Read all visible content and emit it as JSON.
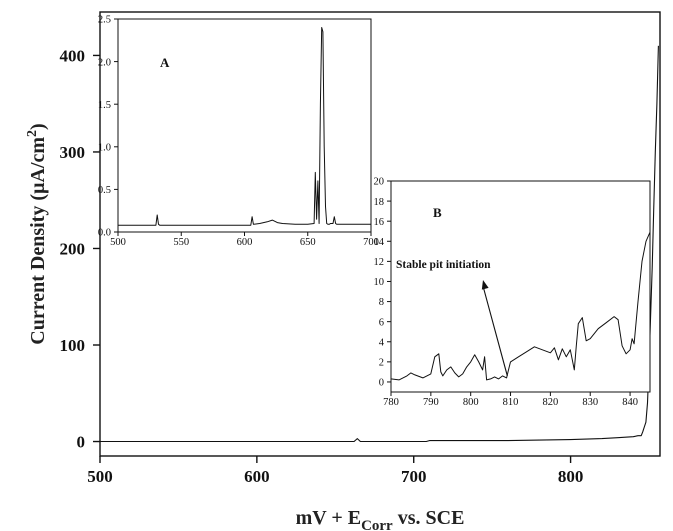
{
  "chart_data": [
    {
      "id": "main",
      "type": "line",
      "xlabel": "mV + E",
      "xlabel_sub": "Corr",
      "xlabel_rest": " vs. SCE",
      "ylabel": "Current Density (µA/cm",
      "ylabel_sup": "2",
      "ylabel_end": ")",
      "xlim": [
        500,
        857
      ],
      "ylim": [
        -15,
        445
      ],
      "xticks": [
        500,
        600,
        700,
        800
      ],
      "yticks": [
        0,
        100,
        200,
        300,
        400
      ],
      "series": [
        {
          "x": [
            500,
            640,
            662,
            664,
            666,
            700,
            708,
            710,
            760,
            780,
            800,
            810,
            820,
            830,
            840,
            843,
            845,
            846,
            847,
            848,
            849,
            850,
            851,
            852,
            853,
            854,
            855,
            856
          ],
          "y": [
            0,
            0,
            0,
            3,
            0,
            0,
            0,
            1,
            1,
            1.5,
            2,
            2.5,
            3,
            4,
            5,
            6,
            6,
            10,
            15,
            20,
            40,
            80,
            130,
            180,
            240,
            300,
            350,
            410
          ]
        }
      ]
    },
    {
      "id": "inset-a",
      "type": "line",
      "label": "A",
      "xlim": [
        500,
        700
      ],
      "ylim": [
        0,
        2.5
      ],
      "xticks": [
        500,
        550,
        600,
        650,
        700
      ],
      "yticks": [
        0.0,
        0.5,
        1.0,
        1.5,
        2.0,
        2.5
      ],
      "ytick_labels": [
        "0.0",
        "0.5",
        "1.0",
        "1.5",
        "2.0",
        "2.5"
      ],
      "series": [
        {
          "x": [
            500,
            530,
            531,
            532,
            533,
            560,
            605,
            606,
            607,
            612,
            618,
            622,
            626,
            630,
            640,
            650,
            655,
            656,
            657,
            658,
            659,
            660,
            661,
            662,
            663,
            664,
            665,
            666,
            667,
            668,
            670,
            671,
            672,
            673,
            680,
            690,
            700
          ],
          "y": [
            0.08,
            0.08,
            0.2,
            0.09,
            0.08,
            0.08,
            0.08,
            0.18,
            0.09,
            0.1,
            0.12,
            0.14,
            0.11,
            0.1,
            0.09,
            0.09,
            0.1,
            0.7,
            0.15,
            0.6,
            0.1,
            1.5,
            2.4,
            2.35,
            1.0,
            0.3,
            0.1,
            0.09,
            0.09,
            0.1,
            0.1,
            0.18,
            0.1,
            0.09,
            0.09,
            0.09,
            0.09
          ]
        }
      ]
    },
    {
      "id": "inset-b",
      "type": "line",
      "label": "B",
      "annotation": "Stable pit initiation",
      "xlim": [
        780,
        845
      ],
      "ylim": [
        -1,
        20
      ],
      "xticks": [
        780,
        790,
        800,
        810,
        820,
        830,
        840
      ],
      "yticks": [
        0,
        2,
        4,
        6,
        8,
        10,
        12,
        14,
        16,
        18,
        20
      ],
      "series": [
        {
          "x": [
            780,
            782,
            784,
            785,
            786,
            788,
            790,
            791,
            792,
            792.5,
            793,
            794,
            795,
            796,
            797,
            798,
            799,
            800,
            801,
            802,
            803,
            803.5,
            804,
            805,
            806,
            807,
            808,
            809,
            809.5,
            810,
            812,
            814,
            816,
            818,
            820,
            821,
            822,
            823,
            824,
            825,
            826,
            826.5,
            827,
            828,
            829,
            830,
            831,
            832,
            834,
            836,
            837,
            838,
            839,
            840,
            840.5,
            841,
            842,
            843,
            844,
            845
          ],
          "y": [
            0.3,
            0.2,
            0.6,
            0.9,
            0.7,
            0.4,
            0.8,
            2.5,
            2.8,
            1.0,
            0.6,
            1.2,
            1.5,
            0.9,
            0.5,
            0.8,
            1.5,
            2.0,
            2.7,
            2.0,
            1.2,
            2.5,
            0.2,
            0.3,
            0.5,
            0.3,
            0.6,
            0.4,
            1.2,
            2.0,
            2.5,
            3.0,
            3.5,
            3.2,
            2.9,
            3.4,
            2.2,
            3.3,
            2.5,
            3.2,
            1.2,
            3.6,
            5.8,
            6.4,
            4.1,
            4.3,
            4.8,
            5.3,
            5.9,
            6.5,
            6.2,
            3.6,
            2.8,
            3.2,
            4.3,
            3.8,
            8.0,
            12.0,
            14.0,
            14.9
          ]
        }
      ]
    }
  ]
}
